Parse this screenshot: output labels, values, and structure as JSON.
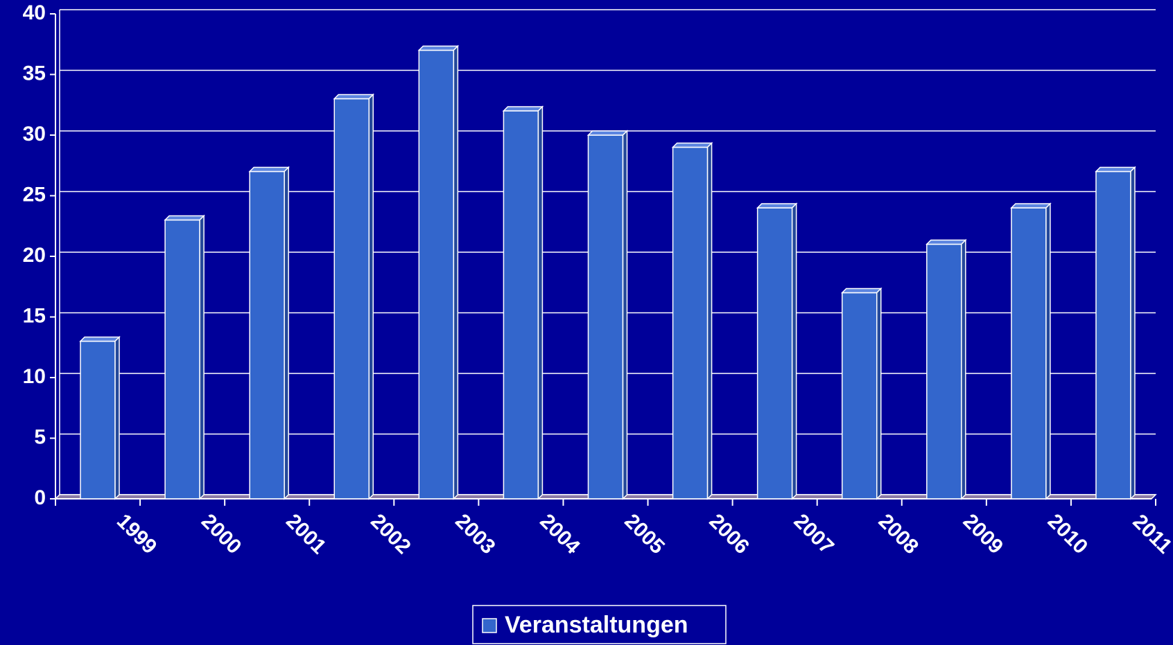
{
  "chart_data": {
    "type": "bar",
    "categories": [
      "1999",
      "2000",
      "2001",
      "2002",
      "2003",
      "2004",
      "2005",
      "2006",
      "2007",
      "2008",
      "2009",
      "2010",
      "2011"
    ],
    "series": [
      {
        "name": "Veranstaltungen",
        "color": "#3366cc",
        "values": [
          13,
          23,
          27,
          33,
          37,
          32,
          30,
          29,
          24,
          17,
          21,
          24,
          27
        ]
      }
    ],
    "ylim": [
      0,
      40
    ],
    "yticks": [
      0,
      5,
      10,
      15,
      20,
      25,
      30,
      35,
      40
    ],
    "grid": true,
    "legend": "bottom"
  }
}
